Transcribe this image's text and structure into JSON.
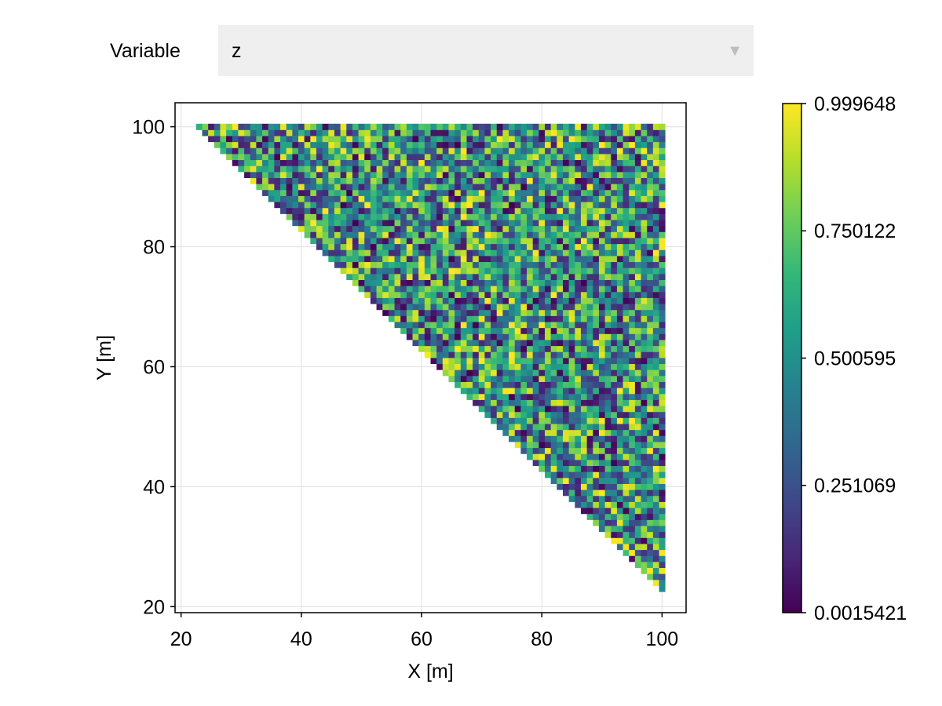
{
  "selector": {
    "label": "Variable",
    "value": "z",
    "arrow_icon": "triangle-down-icon"
  },
  "chart_data": {
    "type": "heatmap",
    "title": "",
    "xlabel": "X [m]",
    "ylabel": "Y [m]",
    "xlim": [
      19,
      104
    ],
    "ylim": [
      19,
      104
    ],
    "xticks": [
      20,
      40,
      60,
      80,
      100
    ],
    "yticks": [
      20,
      40,
      60,
      80,
      100
    ],
    "grid": true,
    "cell_size": 1,
    "domain": {
      "shape": "triangle",
      "vertices": [
        [
          23,
          100
        ],
        [
          100,
          100
        ],
        [
          100,
          23
        ]
      ],
      "description_of_values": "pseudo-random values between colorbar min and max"
    },
    "colormap": "viridis",
    "colorbar": {
      "min": 0.0015421,
      "max": 0.999648,
      "ticks": [
        "0.0015421",
        "0.251069",
        "0.500595",
        "0.750122",
        "0.999648"
      ]
    },
    "colors": {
      "viridis": [
        "#440154",
        "#482878",
        "#3e4989",
        "#31688e",
        "#26828e",
        "#1f9e89",
        "#35b779",
        "#6ece58",
        "#b5de2b",
        "#fde725"
      ],
      "grid": "#e4e4e4",
      "frame": "#000000"
    }
  }
}
